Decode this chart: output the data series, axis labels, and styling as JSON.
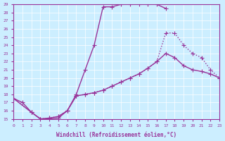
{
  "xlabel": "Windchill (Refroidissement éolien,°C)",
  "ylabel": "",
  "bg_color": "#cceeff",
  "line_color": "#993399",
  "xlim": [
    0,
    23
  ],
  "ylim": [
    15,
    29
  ],
  "xticks": [
    0,
    1,
    2,
    3,
    4,
    5,
    6,
    7,
    8,
    9,
    10,
    11,
    12,
    13,
    14,
    15,
    16,
    17,
    18,
    19,
    20,
    21,
    22,
    23
  ],
  "yticks": [
    15,
    16,
    17,
    18,
    19,
    20,
    21,
    22,
    23,
    24,
    25,
    26,
    27,
    28,
    29
  ],
  "line1_x": [
    0,
    1,
    2,
    3,
    4,
    5,
    6,
    7,
    8,
    9,
    10,
    11,
    12,
    13,
    14,
    15,
    16,
    17
  ],
  "line1_y": [
    17.5,
    17.0,
    15.8,
    15.0,
    15.0,
    15.1,
    16.0,
    18.0,
    21.0,
    24.0,
    28.7,
    28.7,
    29.0,
    29.0,
    29.0,
    29.0,
    29.0,
    28.5
  ],
  "line2_x": [
    0,
    2,
    3,
    4,
    5,
    6,
    7,
    8,
    9,
    10,
    11,
    12,
    13,
    14,
    15,
    16,
    17,
    18,
    19,
    20,
    21,
    22,
    23
  ],
  "line2_y": [
    17.5,
    15.8,
    15.0,
    15.1,
    15.3,
    16.0,
    17.8,
    18.0,
    18.2,
    18.5,
    19.0,
    19.5,
    20.0,
    20.5,
    21.2,
    22.0,
    23.0,
    22.5,
    21.5,
    21.0,
    20.8,
    20.5,
    20.0
  ],
  "line3_x": [
    0,
    2,
    3,
    4,
    5,
    6,
    7,
    8,
    9,
    10,
    11,
    12,
    13,
    14,
    15,
    16,
    17,
    18,
    19,
    20,
    21,
    22,
    23
  ],
  "line3_y": [
    17.5,
    15.8,
    15.0,
    15.1,
    15.3,
    16.0,
    17.8,
    18.0,
    18.2,
    18.5,
    19.0,
    19.5,
    20.0,
    20.5,
    21.2,
    22.0,
    25.5,
    25.5,
    24.0,
    23.0,
    22.5,
    21.0,
    20.0
  ]
}
